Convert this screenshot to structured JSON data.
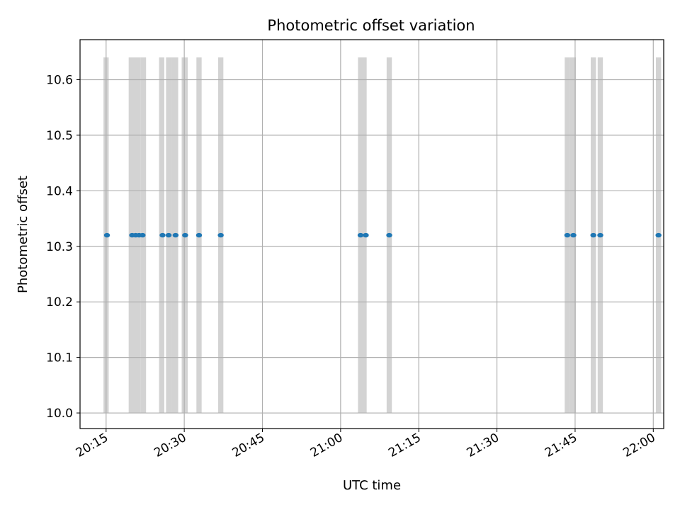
{
  "chart_data": {
    "type": "scatter",
    "title": "Photometric offset variation",
    "xlabel": "UTC time",
    "ylabel": "Photometric offset",
    "grid": true,
    "x_type": "time",
    "xlim": [
      "20:10",
      "22:02"
    ],
    "ylim": [
      9.972,
      10.672
    ],
    "x_ticks": [
      "20:15",
      "20:30",
      "20:45",
      "21:00",
      "21:15",
      "21:30",
      "21:45",
      "22:00"
    ],
    "y_ticks": [
      10.0,
      10.1,
      10.2,
      10.3,
      10.4,
      10.5,
      10.6
    ],
    "y_tick_labels": [
      "10.0",
      "10.1",
      "10.2",
      "10.3",
      "10.4",
      "10.5",
      "10.6"
    ],
    "points": {
      "color": "#1f77b4",
      "x": [
        "20:15:10",
        "20:20:00",
        "20:20:40",
        "20:21:20",
        "20:22:00",
        "20:25:50",
        "20:27:00",
        "20:28:20",
        "20:30:10",
        "20:32:50",
        "20:37:00",
        "21:03:50",
        "21:04:50",
        "21:09:20",
        "21:43:30",
        "21:44:40",
        "21:48:30",
        "21:49:50",
        "22:01:00"
      ],
      "y": [
        10.32,
        10.32,
        10.32,
        10.32,
        10.32,
        10.32,
        10.32,
        10.32,
        10.32,
        10.32,
        10.32,
        10.32,
        10.32,
        10.32,
        10.32,
        10.32,
        10.32,
        10.32,
        10.32
      ]
    },
    "bands": {
      "color": "#d3d3d3",
      "y_range": [
        10.0,
        10.64
      ],
      "intervals": [
        [
          "20:14:30",
          "20:15:30"
        ],
        [
          "20:19:20",
          "20:21:40"
        ],
        [
          "20:21:40",
          "20:22:40"
        ],
        [
          "20:25:10",
          "20:26:10"
        ],
        [
          "20:26:30",
          "20:27:40"
        ],
        [
          "20:27:40",
          "20:28:50"
        ],
        [
          "20:29:30",
          "20:30:40"
        ],
        [
          "20:32:20",
          "20:33:20"
        ],
        [
          "20:36:30",
          "20:37:30"
        ],
        [
          "21:03:20",
          "21:05:00"
        ],
        [
          "21:08:50",
          "21:09:50"
        ],
        [
          "21:43:00",
          "21:44:00"
        ],
        [
          "21:44:00",
          "21:45:10"
        ],
        [
          "21:48:00",
          "21:49:00"
        ],
        [
          "21:49:20",
          "21:50:20"
        ],
        [
          "22:00:30",
          "22:01:30"
        ]
      ]
    }
  }
}
